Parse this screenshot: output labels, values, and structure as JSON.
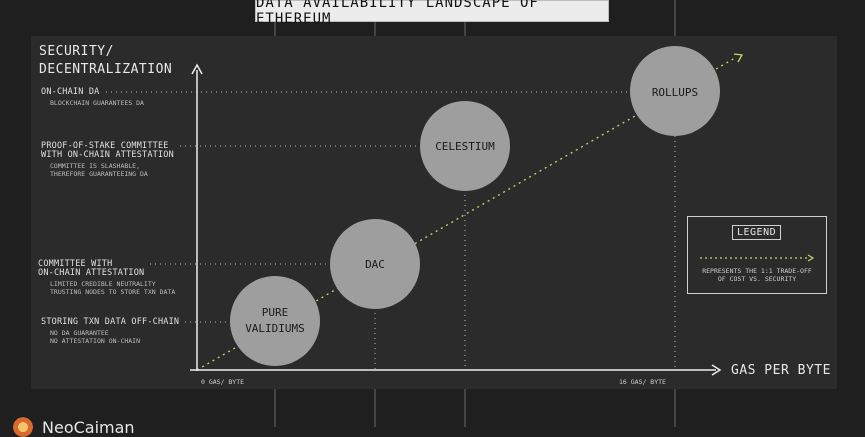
{
  "title": "DATA AVAILABILITY LANDSCAPE OF ETHEREUM",
  "y_axis_title": [
    "SECURITY/",
    "DECENTRALIZATION"
  ],
  "x_axis_title": "GAS PER BYTE",
  "x_ticks": [
    "0 GAS/ BYTE",
    "16 GAS/ BYTE"
  ],
  "levels": [
    {
      "label": [
        "ON-CHAIN DA"
      ],
      "sub": [
        "BLOCKCHAIN GUARANTEES DA"
      ]
    },
    {
      "label": [
        "PROOF-OF-STAKE COMMITTEE",
        "WITH ON-CHAIN ATTESTATION"
      ],
      "sub": [
        "COMMITTEE IS SLASHABLE,",
        "THEREFORE GUARANTEEING DA"
      ]
    },
    {
      "label": [
        "COMMITTEE WITH",
        "ON-CHAIN ATTESTATION"
      ],
      "sub": [
        "LIMITED CREDIBLE NEUTRALITY",
        "TRUSTING NODES TO STORE TXN DATA"
      ]
    },
    {
      "label": [
        "STORING TXN DATA OFF-CHAIN"
      ],
      "sub": [
        "NO DA GUARANTEE",
        "NO ATTESTATION ON-CHAIN"
      ]
    }
  ],
  "nodes": [
    {
      "label": [
        "ROLLUPS"
      ]
    },
    {
      "label": [
        "CELESTIUM"
      ]
    },
    {
      "label": [
        "DAC"
      ]
    },
    {
      "label": [
        "PURE",
        "VALIDIUMS"
      ]
    }
  ],
  "legend": {
    "title": "LEGEND",
    "description": [
      "REPRESENTS THE 1:1 TRADE-OFF",
      "OF COST VS. SECURITY"
    ]
  },
  "brand": "NeoCaiman",
  "colors": {
    "background": "#1f1f1f",
    "panel": "#2b2b2b",
    "node_fill": "#9e9e9e",
    "tradeoff_line": "#c8d86a",
    "guide_line": "#bfbfbf"
  }
}
